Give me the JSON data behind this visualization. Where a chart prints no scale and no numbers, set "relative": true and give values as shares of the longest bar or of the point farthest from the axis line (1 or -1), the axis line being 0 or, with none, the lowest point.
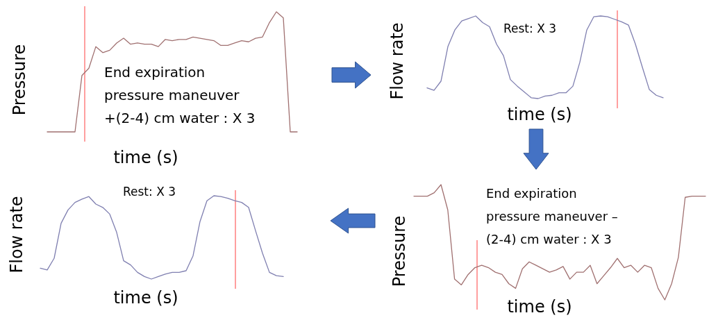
{
  "chart_data": [
    {
      "type": "line",
      "relative": true,
      "ylabel": "Pressure",
      "xlabel": "time (s)",
      "annotations": [
        "End expiration\npressure maneuver\n+(2-4) cm water : X 3"
      ],
      "categories": [
        null,
        null,
        null,
        null,
        null,
        null,
        null,
        null,
        null,
        null,
        null,
        null,
        null,
        null,
        null,
        null,
        null,
        null,
        null,
        null,
        null,
        null,
        null,
        null,
        null,
        null,
        null,
        null,
        null,
        null,
        null,
        null,
        null,
        null,
        null,
        null,
        null
      ],
      "series": [
        {
          "color": "#a07070",
          "values": [
            0,
            0,
            0,
            0,
            0,
            0.47,
            0.53,
            0.71,
            0.66,
            0.68,
            0.74,
            0.78,
            0.73,
            0.74,
            0.73,
            0.73,
            0.71,
            0.77,
            0.76,
            0.77,
            0.77,
            0.79,
            0.78,
            0.77,
            0.76,
            0.72,
            0.72,
            0.74,
            0.76,
            0.75,
            0.78,
            0.79,
            0.91,
            1,
            0.95,
            0,
            0
          ]
        }
      ]
    },
    {
      "type": "line",
      "relative": true,
      "ylabel": "Flow rate",
      "xlabel": "time (s)",
      "annotations": [
        "Rest: X 3"
      ],
      "categories": [
        null,
        null,
        null,
        null,
        null,
        null,
        null,
        null,
        null,
        null,
        null,
        null,
        null,
        null,
        null,
        null,
        null,
        null,
        null,
        null,
        null,
        null,
        null,
        null,
        null,
        null,
        null,
        null,
        null,
        null,
        null,
        null,
        null,
        null,
        null
      ],
      "series": [
        {
          "color": "#7f7fb0",
          "values": [
            0.13,
            0.1,
            0.21,
            0.63,
            0.83,
            0.94,
            0.97,
            1,
            0.92,
            0.87,
            0.66,
            0.52,
            0.23,
            0.15,
            0.08,
            0.01,
            0,
            0.03,
            0.04,
            0.07,
            0.07,
            0.15,
            0.44,
            0.83,
            0.99,
            1,
            0.99,
            0.96,
            0.93,
            0.89,
            0.66,
            0.38,
            0.11,
            0.04,
            0.01
          ]
        }
      ]
    },
    {
      "type": "line",
      "relative": true,
      "ylabel": "Flow rate",
      "xlabel": "time (s)",
      "annotations": [
        "Rest: X 3"
      ],
      "categories": [
        null,
        null,
        null,
        null,
        null,
        null,
        null,
        null,
        null,
        null,
        null,
        null,
        null,
        null,
        null,
        null,
        null,
        null,
        null,
        null,
        null,
        null,
        null,
        null,
        null,
        null,
        null,
        null,
        null,
        null,
        null,
        null,
        null,
        null,
        null,
        null
      ],
      "series": [
        {
          "color": "#7f7fb0",
          "values": [
            0.13,
            0.11,
            0.25,
            0.67,
            0.83,
            0.92,
            0.96,
            0.99,
            0.9,
            0.86,
            0.78,
            0.56,
            0.22,
            0.17,
            0.08,
            0.03,
            0,
            0.03,
            0.06,
            0.08,
            0.08,
            0.1,
            0.28,
            0.69,
            0.94,
            1,
            0.99,
            0.97,
            0.94,
            0.92,
            0.86,
            0.58,
            0.31,
            0.08,
            0.04,
            0.03
          ]
        }
      ]
    },
    {
      "type": "line",
      "relative": true,
      "ylabel": "Pressure",
      "xlabel": "time (s)",
      "annotations": [
        "End expiration\npressure maneuver –\n(2-4) cm water : X 3"
      ],
      "categories": [
        null,
        null,
        null,
        null,
        null,
        null,
        null,
        null,
        null,
        null,
        null,
        null,
        null,
        null,
        null,
        null,
        null,
        null,
        null,
        null,
        null,
        null,
        null,
        null,
        null,
        null,
        null,
        null,
        null,
        null,
        null,
        null,
        null,
        null,
        null,
        null,
        null,
        null,
        null,
        null,
        null,
        null,
        null,
        null
      ],
      "series": [
        {
          "color": "#a07070",
          "values": [
            0.9,
            0.9,
            0.9,
            0.93,
            1,
            0.78,
            0.18,
            0.13,
            0.22,
            0.28,
            0.3,
            0.28,
            0.24,
            0.22,
            0.14,
            0.1,
            0.27,
            0.33,
            0.3,
            0.27,
            0.24,
            0.26,
            0.29,
            0.18,
            0.24,
            0.24,
            0.3,
            0.14,
            0.21,
            0.28,
            0.36,
            0.28,
            0.3,
            0.24,
            0.3,
            0.28,
            0.1,
            0,
            0.14,
            0.37,
            0.89,
            0.9,
            0.9,
            0.9
          ]
        }
      ]
    }
  ]
}
